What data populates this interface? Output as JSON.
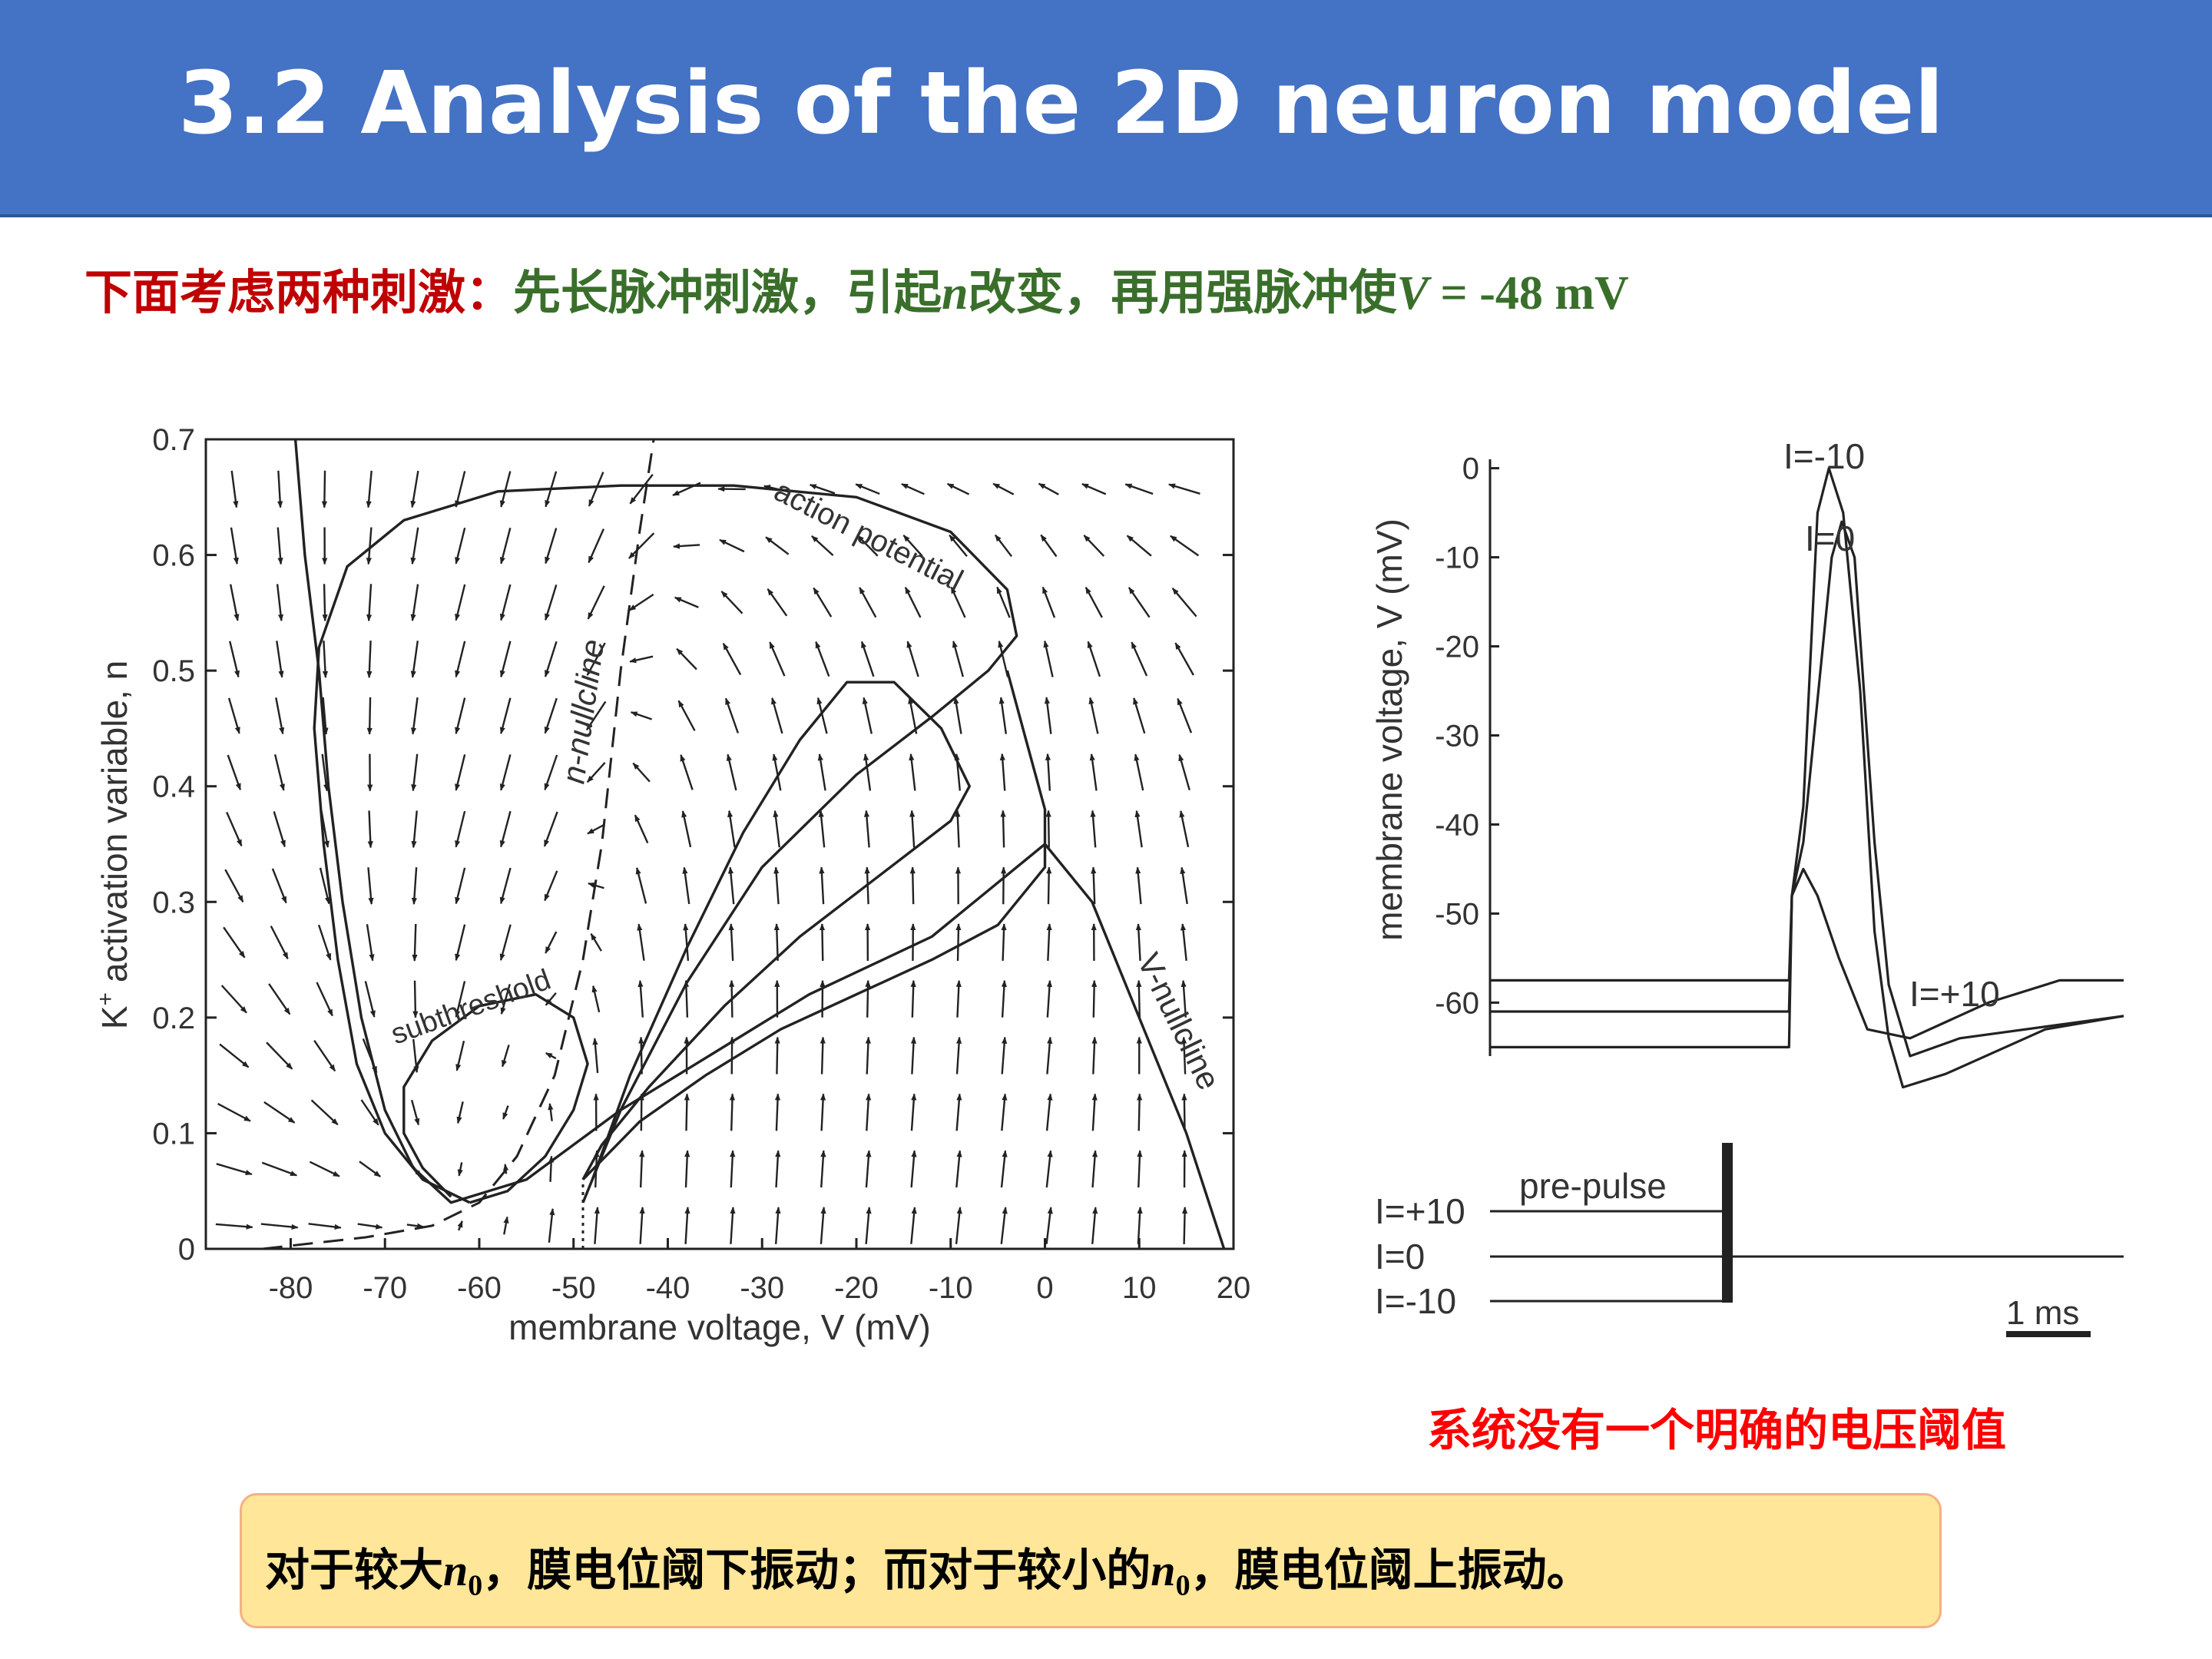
{
  "slide": {
    "title": "3.2 Analysis of the 2D neuron model",
    "subtitle": {
      "part1": "下面考虑两种刺激：",
      "part2": "先长脉冲刺激，引起",
      "var_n": "n",
      "part3": "改变，再用强脉冲使",
      "var_V": "V",
      "part4": " = -48 mV"
    },
    "note": "系统没有一个明确的电压阈值",
    "conclusion": {
      "part1": "对于较大",
      "var1": "n",
      "sub1": "0",
      "part2": "，膜电位阈下振动；而对于较小的",
      "var2": "n",
      "sub2": "0",
      "part3": "，膜电位阈上振动。"
    },
    "colors": {
      "title_bar": "#4472c4",
      "subtitle_red": "#c00000",
      "subtitle_green": "#3a6f2b",
      "note_red": "#ff0000",
      "box_fill": "#ffe699",
      "box_border": "#f4b183"
    }
  },
  "chart_data": [
    {
      "type": "line",
      "subtype": "phase-plane",
      "xlabel": "membrane voltage, V (mV)",
      "ylabel_main": "K",
      "ylabel_sup": "+",
      "ylabel_rest": " activation variable, n",
      "x_ticks": [
        "-80",
        "-70",
        "-60",
        "-50",
        "-40",
        "-30",
        "-20",
        "-10",
        "0",
        "10",
        "20"
      ],
      "y_ticks": [
        "0",
        "0.1",
        "0.2",
        "0.3",
        "0.4",
        "0.5",
        "0.6",
        "0.7"
      ],
      "xlim": [
        -89,
        20
      ],
      "ylim": [
        0,
        0.7
      ],
      "annotations": {
        "action_potential": "action potential",
        "subthreshold": "subthreshold",
        "n_nullcline": "n-nullcline",
        "v_nullcline": "V-nullcline"
      },
      "series": [
        {
          "key": "v_nullcline",
          "style": "solid",
          "points": [
            [
              -79.5,
              0.7
            ],
            [
              -78.5,
              0.6
            ],
            [
              -77,
              0.5
            ],
            [
              -76,
              0.4
            ],
            [
              -74.5,
              0.3
            ],
            [
              -72.5,
              0.2
            ],
            [
              -70,
              0.12
            ],
            [
              -67,
              0.07
            ],
            [
              -63,
              0.04
            ],
            [
              -55,
              0.06
            ],
            [
              -45,
              0.12
            ],
            [
              -35,
              0.17
            ],
            [
              -25,
              0.22
            ],
            [
              -12,
              0.27
            ],
            [
              0,
              0.35
            ],
            [
              5,
              0.3
            ],
            [
              10,
              0.2
            ],
            [
              15,
              0.1
            ],
            [
              19,
              0.0
            ]
          ]
        },
        {
          "key": "n_nullcline",
          "style": "dashed",
          "points": [
            [
              -83,
              0.0
            ],
            [
              -72,
              0.01
            ],
            [
              -65,
              0.02
            ],
            [
              -60,
              0.04
            ],
            [
              -56,
              0.08
            ],
            [
              -52,
              0.15
            ],
            [
              -49,
              0.25
            ],
            [
              -47,
              0.35
            ],
            [
              -45,
              0.5
            ],
            [
              -43,
              0.62
            ],
            [
              -41.5,
              0.7
            ]
          ]
        },
        {
          "key": "action_potential",
          "style": "solid",
          "points": [
            [
              -49,
              0.04
            ],
            [
              -45,
              0.12
            ],
            [
              -38,
              0.23
            ],
            [
              -30,
              0.33
            ],
            [
              -20,
              0.41
            ],
            [
              -12,
              0.46
            ],
            [
              -6,
              0.5
            ],
            [
              -3,
              0.53
            ],
            [
              -4,
              0.57
            ],
            [
              -10,
              0.62
            ],
            [
              -20,
              0.65
            ],
            [
              -33,
              0.66
            ],
            [
              -45,
              0.66
            ],
            [
              -58,
              0.655
            ],
            [
              -68,
              0.63
            ],
            [
              -74,
              0.59
            ],
            [
              -77,
              0.52
            ],
            [
              -77.5,
              0.45
            ],
            [
              -76.5,
              0.35
            ],
            [
              -75,
              0.25
            ],
            [
              -73,
              0.16
            ],
            [
              -70,
              0.1
            ],
            [
              -66,
              0.06
            ],
            [
              -61,
              0.04
            ]
          ]
        },
        {
          "key": "large_loop",
          "style": "solid",
          "points": [
            [
              -48,
              0.06
            ],
            [
              -44,
              0.15
            ],
            [
              -38,
              0.26
            ],
            [
              -32,
              0.36
            ],
            [
              -26,
              0.44
            ],
            [
              -21,
              0.49
            ],
            [
              -16,
              0.49
            ],
            [
              -11,
              0.45
            ],
            [
              -8,
              0.4
            ],
            [
              -10,
              0.37
            ],
            [
              -18,
              0.32
            ],
            [
              -26,
              0.27
            ],
            [
              -34,
              0.21
            ],
            [
              -42,
              0.14
            ],
            [
              -47,
              0.09
            ],
            [
              -49,
              0.06
            ]
          ]
        },
        {
          "key": "subthreshold",
          "style": "solid",
          "points": [
            [
              -61,
              0.04
            ],
            [
              -57,
              0.05
            ],
            [
              -53,
              0.08
            ],
            [
              -50,
              0.12
            ],
            [
              -48.5,
              0.16
            ],
            [
              -50,
              0.2
            ],
            [
              -54,
              0.22
            ],
            [
              -60,
              0.21
            ],
            [
              -65,
              0.18
            ],
            [
              -68,
              0.14
            ],
            [
              -68,
              0.1
            ],
            [
              -66,
              0.07
            ],
            [
              -63,
              0.045
            ]
          ]
        },
        {
          "key": "lower_branch",
          "style": "solid",
          "points": [
            [
              -49,
              0.06
            ],
            [
              -43,
              0.11
            ],
            [
              -36,
              0.15
            ],
            [
              -28,
              0.19
            ],
            [
              -20,
              0.22
            ],
            [
              -12,
              0.25
            ],
            [
              -5,
              0.28
            ],
            [
              0,
              0.33
            ],
            [
              0,
              0.38
            ],
            [
              -2,
              0.44
            ],
            [
              -4,
              0.5
            ]
          ]
        },
        {
          "key": "pulse_segment",
          "style": "dotted",
          "points": [
            [
              -49,
              0.0
            ],
            [
              -49,
              0.06
            ]
          ]
        }
      ]
    },
    {
      "type": "line",
      "subtype": "voltage-trace",
      "ylabel": "membrane voltage, V (mV)",
      "y_ticks": [
        "0",
        "-10",
        "-20",
        "-30",
        "-40",
        "-50",
        "-60"
      ],
      "ylim": [
        -66,
        1
      ],
      "series": [
        {
          "name": "I=-10",
          "points": [
            [
              0,
              -65
            ],
            [
              2.1,
              -65
            ],
            [
              2.12,
              -48
            ],
            [
              2.2,
              -38
            ],
            [
              2.3,
              -5
            ],
            [
              2.38,
              0
            ],
            [
              2.48,
              -5
            ],
            [
              2.6,
              -25
            ],
            [
              2.7,
              -52
            ],
            [
              2.8,
              -64
            ],
            [
              2.9,
              -69.5
            ],
            [
              3.2,
              -68
            ],
            [
              3.9,
              -63
            ],
            [
              4.45,
              -61.5
            ]
          ]
        },
        {
          "name": "I=0",
          "points": [
            [
              0,
              -61
            ],
            [
              2.1,
              -61
            ],
            [
              2.12,
              -48
            ],
            [
              2.2,
              -42
            ],
            [
              2.4,
              -10
            ],
            [
              2.47,
              -6
            ],
            [
              2.56,
              -10
            ],
            [
              2.7,
              -42
            ],
            [
              2.8,
              -58
            ],
            [
              2.95,
              -66
            ],
            [
              3.3,
              -64
            ],
            [
              4.45,
              -61.5
            ]
          ]
        },
        {
          "name": "I=+10",
          "points": [
            [
              0,
              -57.5
            ],
            [
              2.1,
              -57.5
            ],
            [
              2.12,
              -48
            ],
            [
              2.2,
              -45
            ],
            [
              2.3,
              -48
            ],
            [
              2.45,
              -55
            ],
            [
              2.65,
              -63
            ],
            [
              2.95,
              -64
            ],
            [
              3.5,
              -60
            ],
            [
              4.0,
              -57.5
            ],
            [
              4.45,
              -57.5
            ]
          ]
        }
      ],
      "labels": {
        "I_minus10": "I=-10",
        "I_0": "I=0",
        "I_plus10": "I=+10"
      },
      "stimulus": {
        "label": "pre-pulse",
        "levels": [
          "I=+10",
          "I=0",
          "I=-10"
        ],
        "scale_bar": "1 ms"
      }
    }
  ]
}
